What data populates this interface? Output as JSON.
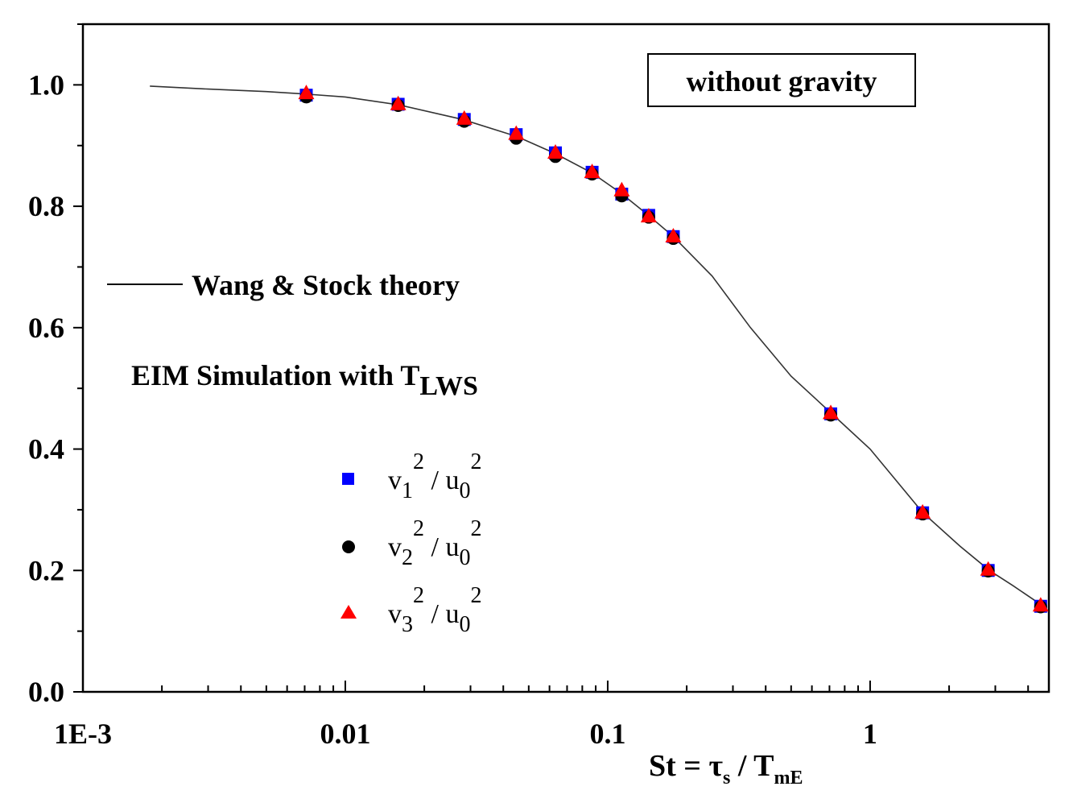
{
  "chart_data": {
    "type": "scatter",
    "xscale": "log",
    "xlim": [
      0.001,
      4.8
    ],
    "ylim": [
      0.0,
      1.1
    ],
    "x_ticks": [
      0.001,
      0.01,
      0.1,
      1
    ],
    "x_tick_labels": [
      "1E-3",
      "0.01",
      "0.1",
      "1"
    ],
    "y_ticks": [
      0.0,
      0.2,
      0.4,
      0.6,
      0.8,
      1.0
    ],
    "y_tick_labels": [
      "0.0",
      "0.2",
      "0.4",
      "0.6",
      "0.8",
      "1.0"
    ],
    "xlabel": {
      "main": "St = τ",
      "sub1": "s",
      "mid": " / T",
      "sub2": "mE"
    },
    "grid": false,
    "box_label": "without gravity",
    "theory": {
      "name": "Wang & Stock theory",
      "x": [
        0.0018,
        0.003,
        0.005,
        0.007,
        0.01,
        0.016,
        0.028,
        0.045,
        0.063,
        0.087,
        0.112,
        0.143,
        0.178,
        0.25,
        0.35,
        0.5,
        0.72,
        1.0,
        1.59,
        2.2,
        2.85,
        3.5,
        4.5
      ],
      "y": [
        0.998,
        0.993,
        0.989,
        0.985,
        0.98,
        0.967,
        0.943,
        0.915,
        0.887,
        0.855,
        0.822,
        0.785,
        0.75,
        0.685,
        0.6,
        0.52,
        0.457,
        0.4,
        0.295,
        0.24,
        0.2,
        0.175,
        0.143
      ]
    },
    "simulation_label": {
      "main": "EIM Simulation with T",
      "sub": "LWS"
    },
    "series": [
      {
        "name": "v1^2 / u0^2",
        "label_parts": {
          "v": "v",
          "v_sub": "1",
          "exp": "2",
          "sep": " / u",
          "u_sub": "0",
          "exp2": "2"
        },
        "marker": "square",
        "color": "#0000ff",
        "x": [
          0.0071,
          0.0159,
          0.0284,
          0.0448,
          0.0632,
          0.0872,
          0.1131,
          0.1433,
          0.1778,
          0.7079,
          1.5849,
          2.8184,
          4.4668
        ],
        "values": [
          0.983,
          0.968,
          0.943,
          0.918,
          0.888,
          0.856,
          0.82,
          0.785,
          0.75,
          0.458,
          0.295,
          0.2,
          0.141
        ]
      },
      {
        "name": "v2^2 / u0^2",
        "label_parts": {
          "v": "v",
          "v_sub": "2",
          "exp": "2",
          "sep": " / u",
          "u_sub": "0",
          "exp2": "2"
        },
        "marker": "circle",
        "color": "#000000",
        "x": [
          0.0071,
          0.0159,
          0.0284,
          0.0448,
          0.0632,
          0.0872,
          0.1131,
          0.1433,
          0.1778,
          0.7079,
          1.5849,
          2.8184,
          4.4668
        ],
        "values": [
          0.98,
          0.966,
          0.94,
          0.912,
          0.882,
          0.853,
          0.817,
          0.782,
          0.747,
          0.456,
          0.293,
          0.199,
          0.14
        ]
      },
      {
        "name": "v3^2 / u0^2",
        "label_parts": {
          "v": "v",
          "v_sub": "3",
          "exp": "2",
          "sep": " / u",
          "u_sub": "0",
          "exp2": "2"
        },
        "marker": "triangle",
        "color": "#ff0000",
        "x": [
          0.0071,
          0.0159,
          0.0284,
          0.0448,
          0.0632,
          0.0872,
          0.1131,
          0.1433,
          0.1778,
          0.7079,
          1.5849,
          2.8184,
          4.4668
        ],
        "values": [
          0.987,
          0.969,
          0.945,
          0.92,
          0.889,
          0.857,
          0.827,
          0.784,
          0.751,
          0.46,
          0.296,
          0.202,
          0.143
        ]
      }
    ]
  }
}
